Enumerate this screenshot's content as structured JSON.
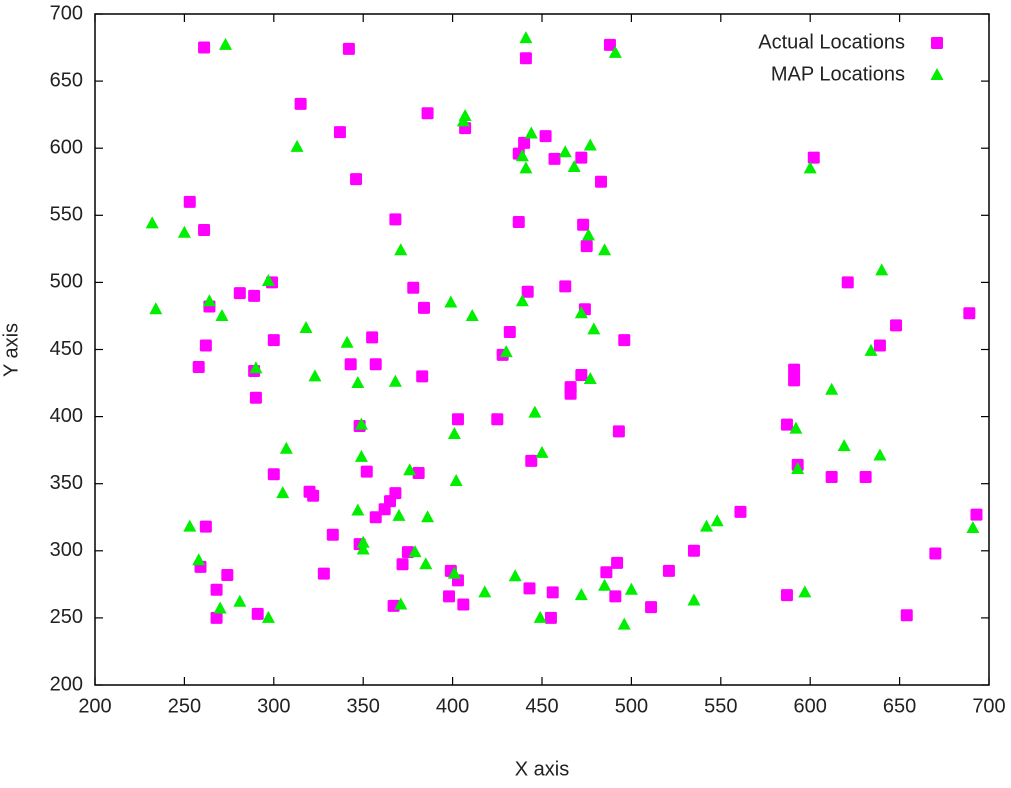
{
  "chart_data": {
    "type": "scatter",
    "xlabel": "X axis",
    "ylabel": "Y axis",
    "xlim": [
      200,
      700
    ],
    "xticks": [
      200,
      250,
      300,
      350,
      400,
      450,
      500,
      550,
      600,
      650,
      700
    ],
    "ylim": [
      200,
      700
    ],
    "yticks": [
      200,
      250,
      300,
      350,
      400,
      450,
      500,
      550,
      600,
      650,
      700
    ],
    "legend": "upper-right",
    "series": [
      {
        "name": "Actual Locations",
        "color": "#ff00ff",
        "marker": "square",
        "x": [
          261,
          342,
          488,
          441,
          315,
          337,
          386,
          407,
          440,
          452,
          437,
          457,
          472,
          483,
          602,
          253,
          261,
          346,
          368,
          437,
          473,
          475,
          299,
          281,
          289,
          264,
          378,
          384,
          442,
          463,
          474,
          621,
          648,
          689,
          262,
          258,
          300,
          343,
          355,
          357,
          428,
          432,
          496,
          591,
          591,
          289,
          290,
          383,
          472,
          466,
          466,
          348,
          403,
          425,
          493,
          587,
          593,
          612,
          631,
          639,
          300,
          320,
          322,
          352,
          381,
          444,
          333,
          357,
          362,
          365,
          368,
          262,
          259,
          274,
          268,
          268,
          291,
          328,
          348,
          375,
          372,
          367,
          399,
          403,
          398,
          406,
          443,
          456,
          455,
          486,
          492,
          491,
          511,
          521,
          535,
          561,
          587,
          654,
          670,
          693
        ],
        "values": [
          675,
          674,
          677,
          667,
          633,
          612,
          626,
          615,
          604,
          609,
          596,
          592,
          593,
          575,
          593,
          560,
          539,
          577,
          547,
          545,
          543,
          527,
          500,
          492,
          490,
          482,
          496,
          481,
          493,
          497,
          480,
          500,
          468,
          477,
          453,
          437,
          457,
          439,
          459,
          439,
          446,
          463,
          457,
          435,
          427,
          434,
          414,
          430,
          431,
          422,
          417,
          393,
          398,
          398,
          389,
          394,
          364,
          355,
          355,
          453,
          357,
          344,
          341,
          359,
          358,
          367,
          312,
          325,
          331,
          337,
          343,
          318,
          288,
          282,
          271,
          250,
          253,
          283,
          305,
          299,
          290,
          259,
          285,
          278,
          266,
          260,
          272,
          269,
          250,
          284,
          291,
          266,
          258,
          285,
          300,
          329,
          267,
          252,
          298,
          327
        ]
      },
      {
        "name": "MAP Locations",
        "color": "#00ee00",
        "marker": "triangle",
        "x": [
          232,
          234,
          273,
          441,
          491,
          313,
          406,
          407,
          444,
          439,
          441,
          463,
          468,
          477,
          600,
          250,
          297,
          264,
          271,
          371,
          399,
          411,
          439,
          472,
          476,
          485,
          479,
          640,
          318,
          341,
          290,
          347,
          323,
          368,
          430,
          477,
          634,
          612,
          446,
          349,
          401,
          307,
          349,
          376,
          402,
          450,
          592,
          593,
          619,
          639,
          305,
          253,
          258,
          347,
          350,
          350,
          370,
          386,
          379,
          385,
          401,
          418,
          435,
          449,
          472,
          485,
          496,
          500,
          535,
          542,
          548,
          597,
          691,
          270,
          281,
          297,
          371
        ],
        "values": [
          544,
          480,
          677,
          682,
          671,
          601,
          620,
          624,
          611,
          594,
          585,
          597,
          586,
          602,
          585,
          537,
          501,
          486,
          475,
          524,
          485,
          475,
          486,
          477,
          535,
          524,
          465,
          509,
          466,
          455,
          436,
          425,
          430,
          426,
          448,
          428,
          449,
          420,
          403,
          394,
          387,
          376,
          370,
          360,
          352,
          373,
          391,
          361,
          378,
          371,
          343,
          318,
          293,
          330,
          306,
          301,
          326,
          325,
          299,
          290,
          283,
          269,
          281,
          250,
          267,
          274,
          245,
          271,
          263,
          318,
          322,
          269,
          317,
          257,
          262,
          250,
          260
        ]
      }
    ]
  }
}
